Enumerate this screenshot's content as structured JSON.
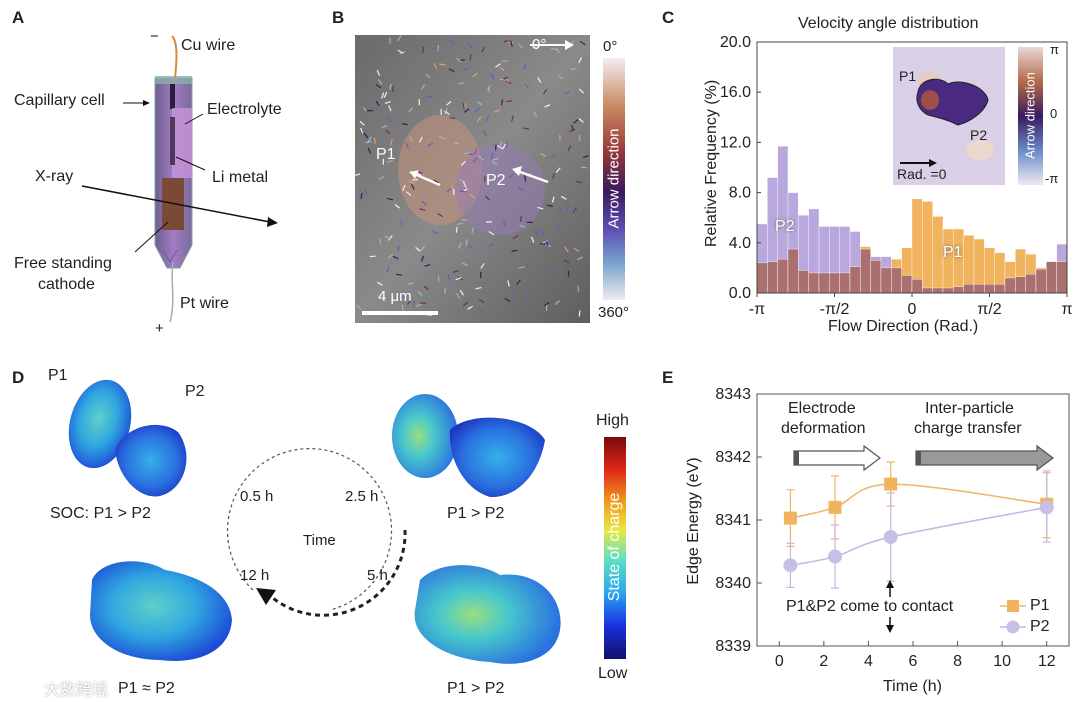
{
  "panels": {
    "A": {
      "label": "A",
      "minus": "−",
      "plus": "+",
      "cu_wire": "Cu wire",
      "capillary_cell": "Capillary cell",
      "electrolyte": "Electrolyte",
      "li_metal": "Li metal",
      "xray": "X-ray",
      "cathode_line1": "Free standing",
      "cathode_line2": "cathode",
      "pt_wire": "Pt wire"
    },
    "B": {
      "label": "B",
      "angle_ref": "0°",
      "p1": "P1",
      "p2": "P2",
      "scale_bar": "4 μm",
      "colorbar_top": "0°",
      "colorbar_bottom": "360°",
      "colorbar_title": "Arrow direction"
    },
    "C": {
      "label": "C",
      "inset": {
        "p1": "P1",
        "p2": "P2",
        "rad_zero": "Rad. =0",
        "colorbar_top": "π",
        "colorbar_mid": "0",
        "colorbar_bottom": "-π",
        "colorbar_title": "Arrow direction"
      },
      "bar_label_p1": "P1",
      "bar_label_p2": "P2"
    },
    "D": {
      "label": "D",
      "p1": "P1",
      "p2": "P2",
      "soc_label": "SOC:   P1 > P2",
      "caption_2_5h": "P1 > P2",
      "caption_5h": "P1 > P2",
      "caption_12h": "P1 ≈ P2",
      "time_center": "Time",
      "t_0_5": "0.5 h",
      "t_2_5": "2.5 h",
      "t_5": "5 h",
      "t_12": "12 h",
      "colorbar_high": "High",
      "colorbar_low": "Low",
      "colorbar_title": "State of charge",
      "watermark": "大数跨境"
    },
    "E": {
      "label": "E",
      "arrow1_line1": "Electrode",
      "arrow1_line2": "deformation",
      "arrow2_line1": "Inter-particle",
      "arrow2_line2": "charge transfer",
      "contact_note": "P1&P2 come to contact"
    }
  },
  "colors": {
    "p1": "#f2b35e",
    "p2": "#b9a8de",
    "overlap": "#a9706f",
    "line_p1": "#f0b566",
    "line_p2": "#c2b6e3"
  },
  "chart_data": [
    {
      "id": "C",
      "type": "bar",
      "title": "Velocity angle distribution",
      "xlabel": "Flow Direction (Rad.)",
      "ylabel": "Relative Frequency (%)",
      "xlim": [
        -3.1416,
        3.1416
      ],
      "ylim": [
        0,
        20
      ],
      "xticks": [
        {
          "v": -3.1416,
          "label": "-π"
        },
        {
          "v": -1.5708,
          "label": "-π/2"
        },
        {
          "v": 0,
          "label": "0"
        },
        {
          "v": 1.5708,
          "label": "π/2"
        },
        {
          "v": 3.1416,
          "label": "π"
        }
      ],
      "yticks": [
        {
          "v": 0,
          "label": "0.0"
        },
        {
          "v": 4,
          "label": "4.0"
        },
        {
          "v": 8,
          "label": "8.0"
        },
        {
          "v": 12,
          "label": "12.0"
        },
        {
          "v": 16,
          "label": "16.0"
        },
        {
          "v": 20,
          "label": "20.0"
        }
      ],
      "bins": 30,
      "series": [
        {
          "name": "P1",
          "values": [
            2.4,
            2.5,
            2.7,
            3.5,
            1.8,
            1.6,
            1.6,
            1.6,
            1.6,
            2.1,
            3.7,
            2.6,
            2.0,
            2.7,
            3.6,
            7.5,
            7.3,
            6.1,
            5.1,
            5.1,
            4.6,
            4.3,
            3.6,
            3.2,
            2.5,
            3.5,
            3.1,
            2.0,
            2.5,
            2.5
          ]
        },
        {
          "name": "P2",
          "values": [
            5.5,
            9.2,
            11.7,
            8.0,
            6.2,
            6.7,
            5.3,
            5.3,
            5.3,
            4.9,
            3.5,
            2.9,
            2.9,
            2.0,
            1.4,
            1.1,
            0.4,
            0.4,
            0.4,
            0.5,
            0.7,
            0.7,
            0.7,
            0.7,
            1.2,
            1.3,
            1.5,
            1.9,
            2.5,
            3.9
          ]
        }
      ],
      "grid": false
    },
    {
      "id": "E",
      "type": "line",
      "xlabel": "Time (h)",
      "ylabel": "Edge Energy (eV)",
      "xlim": [
        -1,
        13
      ],
      "ylim": [
        8339,
        8343
      ],
      "xticks": [
        0,
        2,
        4,
        6,
        8,
        10,
        12
      ],
      "yticks": [
        8339,
        8340,
        8341,
        8342,
        8343
      ],
      "legend": "bottom-right",
      "series": [
        {
          "name": "P1",
          "marker": "square",
          "x": [
            0.5,
            2.5,
            5,
            12
          ],
          "y": [
            8341.03,
            8341.2,
            8341.57,
            8341.25
          ],
          "err": [
            0.45,
            0.5,
            0.35,
            0.53
          ]
        },
        {
          "name": "P2",
          "marker": "circle",
          "x": [
            0.5,
            2.5,
            5,
            12
          ],
          "y": [
            8340.28,
            8340.42,
            8340.73,
            8341.2
          ],
          "err": [
            0.35,
            0.5,
            0.7,
            0.55
          ]
        }
      ],
      "grid": false
    }
  ]
}
